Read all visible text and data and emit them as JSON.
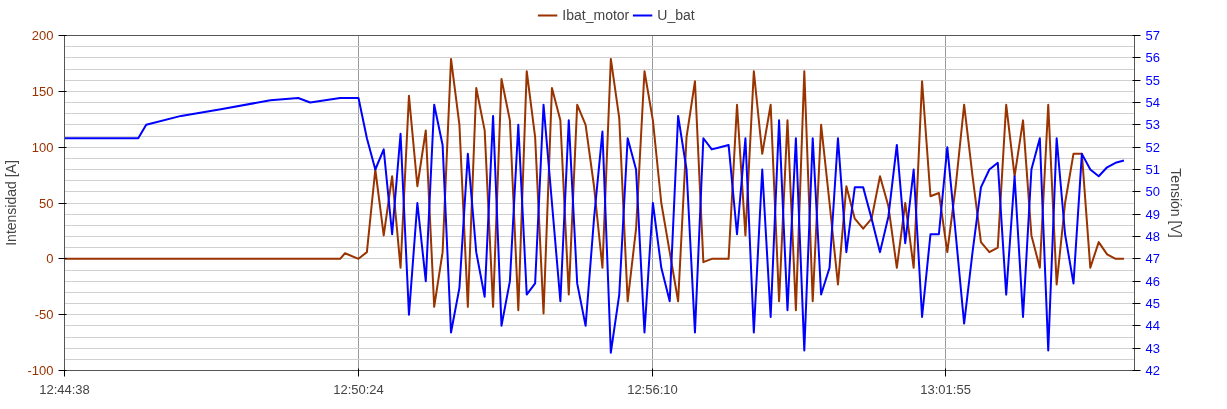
{
  "chart_data": {
    "type": "line",
    "ylabel": "Intensidad [A]",
    "y2label": "Tensión [V]",
    "x": [
      12.743889,
      12.768,
      12.7706,
      12.782,
      12.795,
      12.8112,
      12.8203,
      12.8242,
      12.834,
      12.8356,
      12.84,
      12.84275,
      12.8455,
      12.84825,
      12.851,
      12.85375,
      12.8565,
      12.85925,
      12.862,
      12.86475,
      12.8675,
      12.87025,
      12.873,
      12.87575,
      12.8785,
      12.88125,
      12.884,
      12.88675,
      12.8895,
      12.89225,
      12.895,
      12.89775,
      12.9005,
      12.90325,
      12.906,
      12.90875,
      12.9115,
      12.91425,
      12.917,
      12.91975,
      12.9225,
      12.92525,
      12.928,
      12.93075,
      12.9335,
      12.93625,
      12.939,
      12.94175,
      12.9445,
      12.94725,
      12.95,
      12.95275,
      12.9555,
      12.95825,
      12.961,
      12.96375,
      12.9665,
      12.96925,
      12.972,
      12.97475,
      12.9775,
      12.98025,
      12.983,
      12.98575,
      12.9885,
      12.99125,
      12.994,
      12.99675,
      12.9995,
      13.00225,
      13.005,
      13.00775,
      13.0105,
      13.01325,
      13.016,
      13.01875,
      13.0215,
      13.02425,
      13.027,
      13.02975,
      13.0325,
      13.03525,
      13.038,
      13.04075,
      13.0435,
      13.04625,
      13.049,
      13.05175,
      13.0545,
      13.05725,
      13.06,
      13.06275,
      13.0655,
      13.06825,
      13.071,
      13.07375,
      13.0765,
      13.07925,
      13.082,
      13.08475,
      13.0875,
      13.09025
    ],
    "series": [
      {
        "name": "Ibat_motor",
        "color": "#993300",
        "values": [
          0,
          0,
          0,
          0,
          0,
          0,
          0,
          0,
          0,
          5,
          0,
          6,
          80,
          21,
          74,
          -8,
          146,
          65,
          115,
          -43,
          6,
          179,
          120,
          -43,
          153,
          115,
          -43,
          161,
          124,
          -46,
          168,
          109,
          -49,
          153,
          124,
          -32,
          138,
          120,
          65,
          -8,
          179,
          126,
          -38,
          27,
          168,
          124,
          50,
          6,
          -38,
          109,
          159,
          -3,
          0,
          0,
          0,
          138,
          21,
          168,
          94,
          138,
          -38,
          124,
          -46,
          168,
          -38,
          120,
          50,
          -23,
          65,
          36,
          27,
          36,
          74,
          47,
          -8,
          50,
          -8,
          159,
          56,
          59,
          6,
          65,
          138,
          74,
          15,
          6,
          10,
          138,
          74,
          124,
          21,
          -8,
          138,
          -23,
          50,
          94,
          94,
          -8,
          15,
          4,
          0,
          0
        ]
      },
      {
        "name": "U_bat",
        "color": "#0000ff",
        "axis": "y2",
        "values": [
          52.4,
          52.4,
          53.0,
          53.4,
          53.7,
          54.1,
          54.2,
          54.0,
          54.2,
          54.2,
          54.2,
          52.4,
          51.0,
          51.9,
          48.1,
          52.6,
          44.5,
          49.5,
          46.0,
          53.9,
          52.1,
          43.7,
          45.7,
          51.7,
          47.3,
          45.3,
          53.4,
          44.0,
          46.0,
          53.0,
          45.4,
          45.9,
          53.9,
          49.5,
          45.1,
          53.2,
          45.9,
          44.0,
          48.8,
          52.7,
          42.8,
          45.4,
          52.4,
          51.0,
          43.7,
          49.5,
          46.6,
          45.1,
          53.4,
          51.0,
          43.7,
          52.4,
          51.9,
          52.0,
          52.1,
          48.1,
          52.4,
          43.7,
          51.0,
          44.4,
          53.2,
          44.7,
          52.4,
          42.9,
          52.4,
          45.4,
          46.6,
          52.4,
          47.3,
          50.2,
          50.2,
          48.8,
          47.3,
          48.9,
          52.1,
          47.7,
          51.0,
          44.4,
          48.1,
          48.1,
          52.0,
          48.1,
          44.1,
          47.3,
          50.2,
          51.0,
          51.3,
          45.4,
          50.7,
          44.4,
          51.0,
          52.4,
          42.9,
          52.4,
          48.1,
          45.9,
          51.7,
          51.0,
          50.7,
          51.1,
          51.3,
          51.4
        ]
      }
    ],
    "xlim": [
      12.743889,
      13.0937
    ],
    "xticks": [
      {
        "value": 12.743889,
        "label": "12:44:38"
      },
      {
        "value": 12.84,
        "label": "12:50:24"
      },
      {
        "value": 12.936111,
        "label": "12:56:10"
      },
      {
        "value": 13.031944,
        "label": "13:01:55"
      }
    ],
    "ylim": [
      -100,
      200
    ],
    "yticks": [
      -100,
      -50,
      0,
      50,
      100,
      150,
      200
    ],
    "y2lim": [
      42,
      57
    ],
    "y2ticks": [
      42,
      43,
      44,
      45,
      46,
      47,
      48,
      49,
      50,
      51,
      52,
      53,
      54,
      55,
      56,
      57
    ],
    "grid": true,
    "legend": "top",
    "line_style": "solid",
    "marker": "none"
  }
}
